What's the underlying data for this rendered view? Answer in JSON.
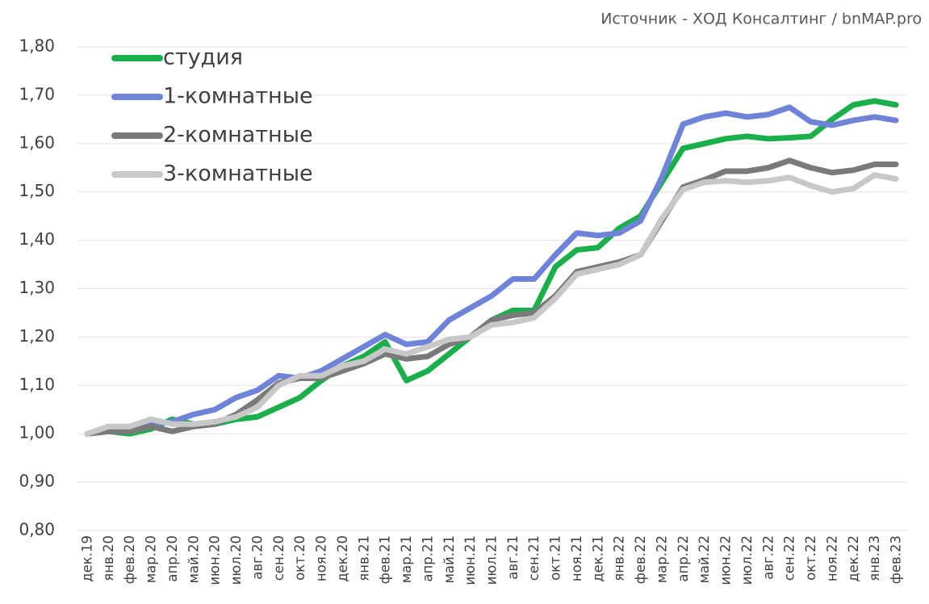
{
  "chart_data": {
    "type": "line",
    "source": "Источник - ХОД Консалтинг / bnMAP.pro",
    "categories": [
      "дек.19",
      "янв.20",
      "фев.20",
      "мар.20",
      "апр.20",
      "май.20",
      "июн.20",
      "июл.20",
      "авг.20",
      "сен.20",
      "окт.20",
      "ноя.20",
      "дек.20",
      "янв.21",
      "фев.21",
      "мар.21",
      "апр.21",
      "май.21",
      "июн.21",
      "июл.21",
      "авг.21",
      "сен.21",
      "окт.21",
      "ноя.21",
      "дек.21",
      "янв.22",
      "фев.22",
      "мар.22",
      "апр.22",
      "май.22",
      "июн.22",
      "июл.22",
      "авг.22",
      "сен.22",
      "окт.22",
      "ноя.22",
      "дек.22",
      "янв.23",
      "фев.23"
    ],
    "series": [
      {
        "name": "студия",
        "color": "#1aaf4b",
        "values": [
          1.0,
          1.005,
          1.0,
          1.01,
          1.03,
          1.02,
          1.02,
          1.03,
          1.035,
          1.055,
          1.075,
          1.11,
          1.14,
          1.16,
          1.19,
          1.11,
          1.13,
          1.165,
          1.2,
          1.235,
          1.255,
          1.255,
          1.345,
          1.38,
          1.385,
          1.425,
          1.45,
          1.52,
          1.59,
          1.6,
          1.61,
          1.615,
          1.61,
          1.612,
          1.615,
          1.65,
          1.68,
          1.688,
          1.68
        ]
      },
      {
        "name": "1-комнатные",
        "color": "#6f84d8",
        "values": [
          1.0,
          1.01,
          1.01,
          1.02,
          1.025,
          1.04,
          1.05,
          1.075,
          1.09,
          1.12,
          1.115,
          1.13,
          1.155,
          1.18,
          1.205,
          1.185,
          1.19,
          1.235,
          1.26,
          1.285,
          1.32,
          1.32,
          1.37,
          1.415,
          1.41,
          1.415,
          1.44,
          1.53,
          1.64,
          1.655,
          1.663,
          1.655,
          1.66,
          1.675,
          1.645,
          1.638,
          1.648,
          1.655,
          1.648
        ]
      },
      {
        "name": "2-комнатные",
        "color": "#7a7a7a",
        "values": [
          1.0,
          1.005,
          1.005,
          1.015,
          1.005,
          1.015,
          1.02,
          1.04,
          1.07,
          1.105,
          1.115,
          1.115,
          1.13,
          1.145,
          1.165,
          1.155,
          1.16,
          1.185,
          1.2,
          1.235,
          1.245,
          1.25,
          1.285,
          1.335,
          1.345,
          1.355,
          1.37,
          1.44,
          1.51,
          1.525,
          1.543,
          1.543,
          1.55,
          1.565,
          1.55,
          1.54,
          1.545,
          1.557,
          1.557
        ]
      },
      {
        "name": "3-комнатные",
        "color": "#c8c8c8",
        "values": [
          1.0,
          1.015,
          1.015,
          1.03,
          1.02,
          1.02,
          1.025,
          1.035,
          1.055,
          1.1,
          1.12,
          1.12,
          1.14,
          1.15,
          1.175,
          1.165,
          1.18,
          1.195,
          1.2,
          1.225,
          1.23,
          1.24,
          1.28,
          1.33,
          1.34,
          1.35,
          1.37,
          1.445,
          1.505,
          1.52,
          1.523,
          1.52,
          1.523,
          1.53,
          1.513,
          1.5,
          1.507,
          1.535,
          1.527
        ]
      }
    ],
    "ylim": [
      0.8,
      1.8
    ],
    "yticks": [
      {
        "value": 0.8,
        "label": "0,80"
      },
      {
        "value": 0.9,
        "label": "0,90"
      },
      {
        "value": 1.0,
        "label": "1,00"
      },
      {
        "value": 1.1,
        "label": "1,10"
      },
      {
        "value": 1.2,
        "label": "1,20"
      },
      {
        "value": 1.3,
        "label": "1,30"
      },
      {
        "value": 1.4,
        "label": "1,40"
      },
      {
        "value": 1.5,
        "label": "1,50"
      },
      {
        "value": 1.6,
        "label": "1,60"
      },
      {
        "value": 1.7,
        "label": "1,70"
      },
      {
        "value": 1.8,
        "label": "1,80"
      }
    ],
    "grid": true,
    "legend": "upper left"
  }
}
